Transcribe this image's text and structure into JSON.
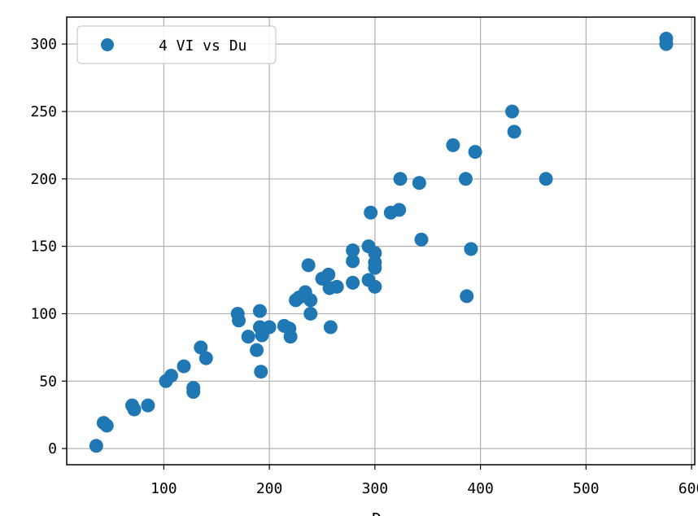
{
  "chart_data": {
    "type": "scatter",
    "title": "",
    "xlabel": "Du",
    "ylabel": "",
    "xlim": [
      8,
      603
    ],
    "ylim": [
      -12,
      320
    ],
    "xticks": [
      100,
      200,
      300,
      400,
      500,
      600
    ],
    "yticks": [
      0,
      50,
      100,
      150,
      200,
      250,
      300
    ],
    "xtick_labels": [
      "100",
      "200",
      "300",
      "400",
      "500",
      "600"
    ],
    "ytick_labels": [
      "0",
      "50",
      "100",
      "150",
      "200",
      "250",
      "300"
    ],
    "grid": true,
    "legend_position": "top-left",
    "series": [
      {
        "name": "4 VI vs Du",
        "color": "#1f77b4",
        "marker": "circle",
        "points": [
          [
            36,
            2
          ],
          [
            43,
            19
          ],
          [
            46,
            17
          ],
          [
            70,
            32
          ],
          [
            72,
            29
          ],
          [
            85,
            32
          ],
          [
            102,
            50
          ],
          [
            107,
            54
          ],
          [
            119,
            61
          ],
          [
            128,
            45
          ],
          [
            128,
            42
          ],
          [
            135,
            75
          ],
          [
            140,
            67
          ],
          [
            170,
            100
          ],
          [
            171,
            95
          ],
          [
            180,
            83
          ],
          [
            188,
            73
          ],
          [
            191,
            102
          ],
          [
            191,
            90
          ],
          [
            192,
            57
          ],
          [
            193,
            84
          ],
          [
            200,
            90
          ],
          [
            214,
            91
          ],
          [
            219,
            89
          ],
          [
            220,
            83
          ],
          [
            225,
            110
          ],
          [
            228,
            112
          ],
          [
            234,
            116
          ],
          [
            237,
            136
          ],
          [
            239,
            110
          ],
          [
            239,
            100
          ],
          [
            250,
            126
          ],
          [
            256,
            129
          ],
          [
            257,
            119
          ],
          [
            258,
            90
          ],
          [
            264,
            120
          ],
          [
            279,
            147
          ],
          [
            279,
            139
          ],
          [
            279,
            123
          ],
          [
            294,
            150
          ],
          [
            294,
            125
          ],
          [
            296,
            175
          ],
          [
            300,
            145
          ],
          [
            300,
            138
          ],
          [
            300,
            134
          ],
          [
            300,
            120
          ],
          [
            315,
            175
          ],
          [
            323,
            177
          ],
          [
            324,
            200
          ],
          [
            342,
            197
          ],
          [
            344,
            155
          ],
          [
            374,
            225
          ],
          [
            386,
            200
          ],
          [
            387,
            113
          ],
          [
            391,
            148
          ],
          [
            395,
            220
          ],
          [
            430,
            250
          ],
          [
            432,
            235
          ],
          [
            462,
            200
          ],
          [
            576,
            304
          ],
          [
            576,
            300
          ]
        ]
      }
    ]
  }
}
